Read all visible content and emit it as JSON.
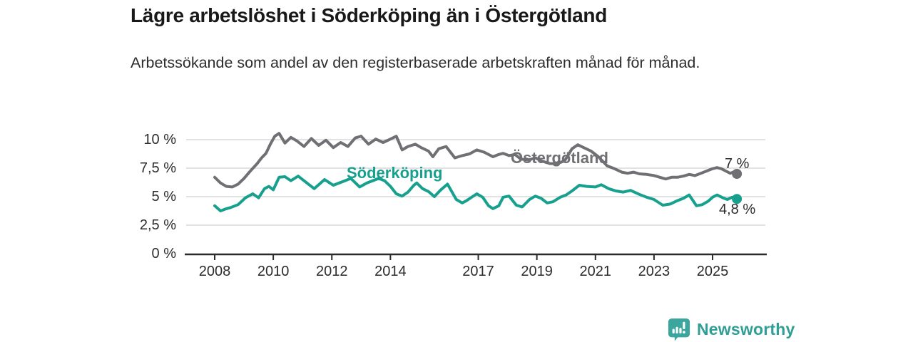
{
  "title": "Lägre arbetslöshet i Söderköping än i Östergötland",
  "subtitle": "Arbetssökande som andel av den registerbaserade arbetskraften månad för månad.",
  "branding": {
    "name": "Newsworthy"
  },
  "colors": {
    "background": "#ffffff",
    "grid": "#d8d8d8",
    "axis": "#2b2b2b",
    "title_text": "#191919",
    "tick_text": "#2c2c2c",
    "ostergotland": "#707074",
    "soderkoping": "#17a08e",
    "brand": "#2f9e95"
  },
  "chart_data": {
    "type": "line",
    "title": "Lägre arbetslöshet i Söderköping än i Östergötland",
    "subtitle": "Arbetssökande som andel av den registerbaserade arbetskraften månad för månad.",
    "unit": "%",
    "xlim": [
      2007.05,
      2026.85
    ],
    "ylim": [
      0,
      10
    ],
    "grid": "horizontal",
    "legend_position": "inline-labels",
    "x_ticks": [
      {
        "value": 2008,
        "label": "2008"
      },
      {
        "value": 2010,
        "label": "2010"
      },
      {
        "value": 2012,
        "label": "2012"
      },
      {
        "value": 2014,
        "label": "2014"
      },
      {
        "value": 2017,
        "label": "2017"
      },
      {
        "value": 2019,
        "label": "2019"
      },
      {
        "value": 2021,
        "label": "2021"
      },
      {
        "value": 2023,
        "label": "2023"
      },
      {
        "value": 2025,
        "label": "2025"
      }
    ],
    "y_ticks": [
      {
        "value": 0,
        "label": "0 %"
      },
      {
        "value": 2.5,
        "label": "2,5 %"
      },
      {
        "value": 5,
        "label": "5 %"
      },
      {
        "value": 7.5,
        "label": "7,5 %"
      },
      {
        "value": 10,
        "label": "10 %"
      }
    ],
    "series": [
      {
        "name": "Östergötland",
        "color": "#707074",
        "end_label": "7 %",
        "end_value": 7.0,
        "points": [
          [
            2008,
            6.7
          ],
          [
            2008.2,
            6.2
          ],
          [
            2008.4,
            5.9
          ],
          [
            2008.6,
            5.85
          ],
          [
            2008.8,
            6.1
          ],
          [
            2009,
            6.6
          ],
          [
            2009.2,
            7.2
          ],
          [
            2009.45,
            7.9
          ],
          [
            2009.6,
            8.4
          ],
          [
            2009.75,
            8.8
          ],
          [
            2009.9,
            9.6
          ],
          [
            2010.05,
            10.3
          ],
          [
            2010.2,
            10.55
          ],
          [
            2010.4,
            9.7
          ],
          [
            2010.6,
            10.2
          ],
          [
            2010.8,
            9.9
          ],
          [
            2011.05,
            9.4
          ],
          [
            2011.3,
            10.1
          ],
          [
            2011.55,
            9.5
          ],
          [
            2011.8,
            9.95
          ],
          [
            2012.05,
            9.3
          ],
          [
            2012.3,
            9.75
          ],
          [
            2012.55,
            9.4
          ],
          [
            2012.8,
            10.15
          ],
          [
            2013,
            10.3
          ],
          [
            2013.25,
            9.6
          ],
          [
            2013.5,
            10.05
          ],
          [
            2013.75,
            9.75
          ],
          [
            2014,
            10.05
          ],
          [
            2014.2,
            10.3
          ],
          [
            2014.4,
            9.1
          ],
          [
            2014.6,
            9.4
          ],
          [
            2014.85,
            9.6
          ],
          [
            2015.05,
            9.3
          ],
          [
            2015.3,
            9.0
          ],
          [
            2015.45,
            8.5
          ],
          [
            2015.65,
            9.2
          ],
          [
            2015.9,
            9.4
          ],
          [
            2016.2,
            8.4
          ],
          [
            2016.45,
            8.6
          ],
          [
            2016.7,
            8.75
          ],
          [
            2016.95,
            9.1
          ],
          [
            2017.2,
            8.9
          ],
          [
            2017.5,
            8.5
          ],
          [
            2017.7,
            8.7
          ],
          [
            2017.85,
            8.8
          ],
          [
            2018.05,
            8.6
          ],
          [
            2018.25,
            8.7
          ],
          [
            2018.45,
            8.3
          ],
          [
            2018.7,
            8.2
          ],
          [
            2018.95,
            8.4
          ],
          [
            2019.2,
            8.1
          ],
          [
            2019.45,
            7.9
          ],
          [
            2019.7,
            7.9
          ],
          [
            2019.95,
            8.15
          ],
          [
            2020.2,
            9.2
          ],
          [
            2020.4,
            9.55
          ],
          [
            2020.6,
            9.3
          ],
          [
            2020.85,
            9.0
          ],
          [
            2021.1,
            8.5
          ],
          [
            2021.4,
            7.7
          ],
          [
            2021.65,
            7.45
          ],
          [
            2021.9,
            7.15
          ],
          [
            2022.1,
            7.05
          ],
          [
            2022.3,
            7.15
          ],
          [
            2022.5,
            7.0
          ],
          [
            2022.75,
            6.95
          ],
          [
            2023,
            6.85
          ],
          [
            2023.2,
            6.7
          ],
          [
            2023.4,
            6.55
          ],
          [
            2023.6,
            6.7
          ],
          [
            2023.8,
            6.7
          ],
          [
            2024,
            6.8
          ],
          [
            2024.2,
            6.95
          ],
          [
            2024.4,
            6.85
          ],
          [
            2024.6,
            7.05
          ],
          [
            2024.8,
            7.25
          ],
          [
            2025,
            7.45
          ],
          [
            2025.15,
            7.55
          ],
          [
            2025.3,
            7.45
          ],
          [
            2025.45,
            7.25
          ],
          [
            2025.6,
            7.05
          ],
          [
            2025.7,
            7.15
          ],
          [
            2025.83,
            7.0
          ]
        ]
      },
      {
        "name": "Söderköping",
        "color": "#17a08e",
        "end_label": "4,8 %",
        "end_value": 4.8,
        "points": [
          [
            2008,
            4.2
          ],
          [
            2008.2,
            3.75
          ],
          [
            2008.35,
            3.9
          ],
          [
            2008.55,
            4.05
          ],
          [
            2008.8,
            4.3
          ],
          [
            2009.05,
            4.9
          ],
          [
            2009.3,
            5.25
          ],
          [
            2009.5,
            4.9
          ],
          [
            2009.7,
            5.7
          ],
          [
            2009.85,
            5.9
          ],
          [
            2010,
            5.6
          ],
          [
            2010.2,
            6.7
          ],
          [
            2010.4,
            6.75
          ],
          [
            2010.6,
            6.4
          ],
          [
            2010.85,
            6.8
          ],
          [
            2011.15,
            6.2
          ],
          [
            2011.4,
            5.7
          ],
          [
            2011.75,
            6.5
          ],
          [
            2012.05,
            6.0
          ],
          [
            2012.35,
            6.3
          ],
          [
            2012.65,
            6.6
          ],
          [
            2012.95,
            5.85
          ],
          [
            2013.2,
            6.2
          ],
          [
            2013.6,
            6.6
          ],
          [
            2013.8,
            6.4
          ],
          [
            2014,
            5.9
          ],
          [
            2014.2,
            5.25
          ],
          [
            2014.4,
            5.05
          ],
          [
            2014.6,
            5.4
          ],
          [
            2014.8,
            6.0
          ],
          [
            2014.9,
            6.2
          ],
          [
            2015.1,
            5.7
          ],
          [
            2015.3,
            5.45
          ],
          [
            2015.5,
            5.0
          ],
          [
            2015.7,
            5.55
          ],
          [
            2015.95,
            6.1
          ],
          [
            2016.25,
            4.75
          ],
          [
            2016.45,
            4.45
          ],
          [
            2016.6,
            4.65
          ],
          [
            2016.95,
            5.25
          ],
          [
            2017.15,
            4.95
          ],
          [
            2017.35,
            4.2
          ],
          [
            2017.5,
            3.95
          ],
          [
            2017.7,
            4.2
          ],
          [
            2017.85,
            4.95
          ],
          [
            2018.05,
            5.05
          ],
          [
            2018.3,
            4.25
          ],
          [
            2018.5,
            4.1
          ],
          [
            2018.75,
            4.75
          ],
          [
            2018.95,
            5.05
          ],
          [
            2019.15,
            4.85
          ],
          [
            2019.35,
            4.45
          ],
          [
            2019.55,
            4.55
          ],
          [
            2019.8,
            4.95
          ],
          [
            2020,
            5.15
          ],
          [
            2020.2,
            5.5
          ],
          [
            2020.45,
            6.0
          ],
          [
            2020.7,
            5.9
          ],
          [
            2021,
            5.85
          ],
          [
            2021.2,
            6.05
          ],
          [
            2021.45,
            5.7
          ],
          [
            2021.7,
            5.5
          ],
          [
            2021.95,
            5.4
          ],
          [
            2022.2,
            5.55
          ],
          [
            2022.5,
            5.2
          ],
          [
            2022.75,
            4.95
          ],
          [
            2023,
            4.75
          ],
          [
            2023.3,
            4.25
          ],
          [
            2023.55,
            4.35
          ],
          [
            2023.8,
            4.65
          ],
          [
            2024,
            4.85
          ],
          [
            2024.2,
            5.15
          ],
          [
            2024.45,
            4.2
          ],
          [
            2024.65,
            4.3
          ],
          [
            2024.85,
            4.6
          ],
          [
            2025,
            4.95
          ],
          [
            2025.15,
            5.15
          ],
          [
            2025.35,
            4.9
          ],
          [
            2025.5,
            4.75
          ],
          [
            2025.67,
            4.95
          ],
          [
            2025.83,
            4.8
          ]
        ]
      }
    ]
  }
}
